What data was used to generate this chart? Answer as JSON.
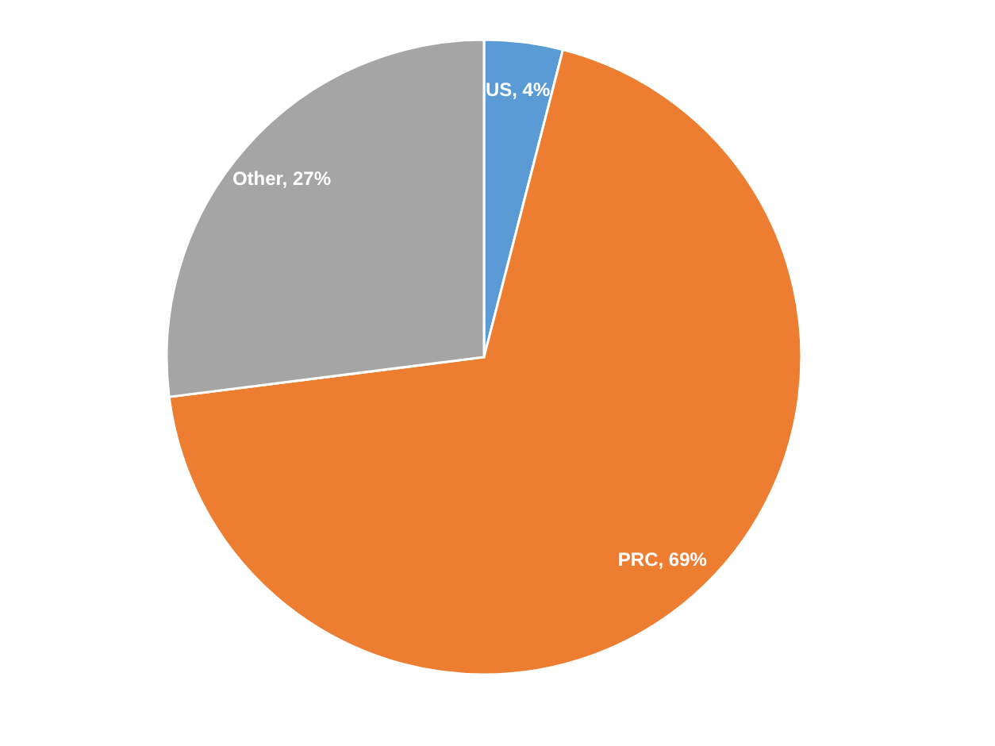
{
  "chart_data": {
    "type": "pie",
    "categories": [
      "US",
      "PRC",
      "Other"
    ],
    "values": [
      4,
      69,
      27
    ],
    "colors": [
      "#5b9bd5",
      "#ed7d31",
      "#a5a5a5"
    ],
    "value_labels": [
      "4%",
      "69%",
      "27%"
    ],
    "legend": false
  }
}
